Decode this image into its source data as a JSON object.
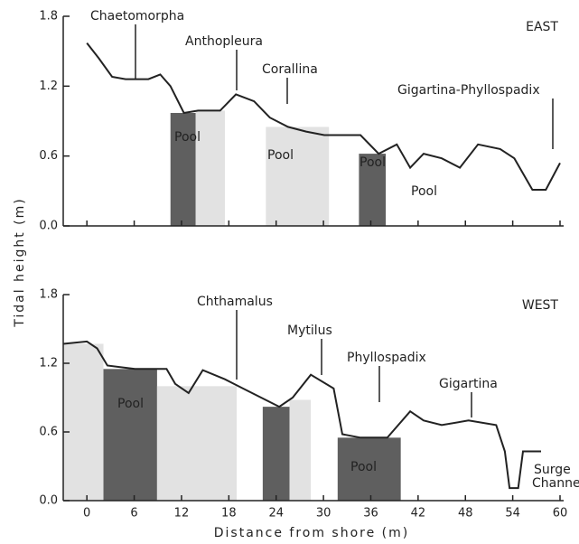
{
  "chart_data": [
    {
      "type": "line",
      "panel": "EAST",
      "ylabel": "Tidal height (m)",
      "x": [
        0,
        1.5,
        3.2,
        4.9,
        7.8,
        9.3,
        10.6,
        12.3,
        14.1,
        16.9,
        18.9,
        21.2,
        23.2,
        25.5,
        27.8,
        30.1,
        32.4,
        34.7,
        37.0,
        39.3,
        41.0,
        42.7,
        45.0,
        47.3,
        49.6,
        52.4,
        54.2,
        56.5,
        58.2,
        60
      ],
      "values": [
        1.57,
        1.44,
        1.28,
        1.26,
        1.26,
        1.3,
        1.2,
        0.97,
        0.99,
        0.99,
        1.13,
        1.07,
        0.93,
        0.85,
        0.81,
        0.78,
        0.78,
        0.78,
        0.62,
        0.7,
        0.5,
        0.62,
        0.58,
        0.5,
        0.7,
        0.66,
        0.58,
        0.31,
        0.31,
        0.54
      ],
      "color": "#222",
      "pools": [
        {
          "x0": 10.6,
          "x1": 13.8,
          "top": 0.97,
          "color": "#5f5f5f"
        },
        {
          "x0": 13.8,
          "x1": 17.5,
          "top": 0.99,
          "color": "#e2e2e2"
        },
        {
          "x0": 22.7,
          "x1": 30.7,
          "top": 0.85,
          "color": "#e2e2e2"
        },
        {
          "x0": 34.5,
          "x1": 37.9,
          "top": 0.62,
          "color": "#5f5f5f"
        }
      ],
      "annotations": [
        "Chaetomorpha",
        "Anthopleura",
        "Corallina",
        "Gigartina-Phyllospadix",
        "Pool",
        "Pool",
        "Pool",
        "Pool"
      ],
      "xlim": [
        -3,
        60
      ],
      "ylim": [
        0,
        1.8
      ],
      "xticks": [
        0,
        6,
        12,
        18,
        24,
        30,
        36,
        42,
        48,
        54,
        60
      ],
      "yticks": [
        {
          "value": 0,
          "label": "0.0"
        },
        0.6,
        1.2,
        1.8
      ]
    },
    {
      "type": "line",
      "panel": "WEST",
      "xlabel": "Distance from shore (m)",
      "x": [
        -3,
        0,
        1.3,
        2.6,
        6.1,
        10.1,
        11.2,
        12.9,
        14.7,
        17.5,
        19.8,
        22.1,
        24.4,
        26.1,
        28.4,
        31.3,
        32.4,
        34.7,
        38.1,
        41.0,
        42.7,
        45.0,
        48.4,
        51.9,
        53.0,
        53.6,
        54.7,
        55.3,
        57.6
      ],
      "values": [
        1.37,
        1.39,
        1.33,
        1.18,
        1.15,
        1.15,
        1.02,
        0.94,
        1.14,
        1.06,
        0.98,
        0.9,
        0.82,
        0.9,
        1.1,
        0.98,
        0.58,
        0.55,
        0.55,
        0.78,
        0.7,
        0.66,
        0.7,
        0.66,
        0.43,
        0.11,
        0.11,
        0.43,
        0.43
      ],
      "color": "#222",
      "pools": [
        {
          "x0": -3,
          "x1": 2.1,
          "top": 1.37,
          "color": "#e2e2e2"
        },
        {
          "x0": 2.1,
          "x1": 8.9,
          "top": 1.15,
          "color": "#5f5f5f"
        },
        {
          "x0": 8.9,
          "x1": 19.0,
          "top": 1.0,
          "color": "#e2e2e2"
        },
        {
          "x0": 22.3,
          "x1": 25.7,
          "top": 0.82,
          "color": "#5f5f5f"
        },
        {
          "x0": 25.7,
          "x1": 28.4,
          "top": 0.88,
          "color": "#e2e2e2"
        },
        {
          "x0": 31.8,
          "x1": 39.8,
          "top": 0.55,
          "color": "#5f5f5f"
        }
      ],
      "annotations": [
        "Chthamalus",
        "Mytilus",
        "Phyllospadix",
        "Gigartina",
        "Pool",
        "Pool",
        "Surge",
        "Channel"
      ],
      "xlim": [
        -3,
        60
      ],
      "ylim": [
        0,
        1.8
      ],
      "xticks": [
        0,
        6,
        12,
        18,
        24,
        30,
        36,
        42,
        48,
        54,
        60
      ],
      "yticks": [
        {
          "value": 0,
          "label": "0.0"
        },
        0.6,
        1.2,
        1.8
      ]
    }
  ]
}
